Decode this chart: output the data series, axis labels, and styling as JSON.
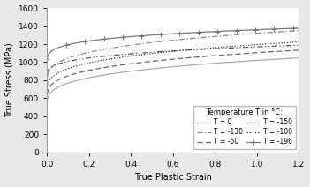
{
  "xlabel": "True Plastic Strain",
  "ylabel": "True Stress (MPa)",
  "xlim": [
    0.0,
    1.2
  ],
  "ylim": [
    0,
    1600
  ],
  "xticks": [
    0.0,
    0.2,
    0.4,
    0.6,
    0.8,
    1.0,
    1.2
  ],
  "yticks": [
    0,
    200,
    400,
    600,
    800,
    1000,
    1200,
    1400,
    1600
  ],
  "legend_title": "Temperature T in °C:",
  "curves": [
    {
      "label": "T = 0",
      "linestyle": "solid",
      "color": "#aaaaaa",
      "sigma0": 490,
      "K": 530,
      "n": 0.28
    },
    {
      "label": "T = -50",
      "linestyle": "dashed",
      "color": "#666666",
      "sigma0": 565,
      "K": 540,
      "n": 0.28
    },
    {
      "label": "T = -100",
      "linestyle": "dotted",
      "color": "#333333",
      "sigma0": 635,
      "K": 560,
      "n": 0.28
    },
    {
      "label": "T = -130",
      "linestyle": "dashdot",
      "color": "#888888",
      "sigma0": 740,
      "K": 580,
      "n": 0.28
    },
    {
      "label": "T = -150",
      "linestyle": "dashdotdot",
      "color": "#555555",
      "sigma0": 830,
      "K": 340,
      "n": 0.28
    },
    {
      "label": "T = -196",
      "linestyle": "solid_marker",
      "color": "#777777",
      "sigma0": 940,
      "K": 420,
      "n": 0.22
    }
  ],
  "plot_facecolor": "#ffffff",
  "fig_facecolor": "#e8e8e8"
}
